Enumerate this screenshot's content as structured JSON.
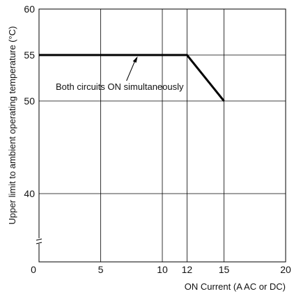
{
  "chart_data": {
    "type": "line",
    "xlabel": "ON Current (A AC or DC)",
    "ylabel": "Upper limit to ambient operating temperature (°C)",
    "xlim": [
      0,
      20
    ],
    "xticks": [
      0,
      5,
      10,
      12,
      15,
      20
    ],
    "x_tick_labels": [
      "0",
      "5",
      "10",
      "12",
      "15",
      "20"
    ],
    "yticks": [
      40,
      50,
      55,
      60
    ],
    "y_tick_labels": [
      "40",
      "50",
      "55",
      "60"
    ],
    "y_axis_break": true,
    "grid": true,
    "series": [
      {
        "x": [
          0,
          12,
          15
        ],
        "y": [
          55,
          55,
          50
        ]
      }
    ],
    "annotations": [
      {
        "text": "Both circuits ON simultaneously",
        "points_to": {
          "x": 8,
          "y": 55
        }
      }
    ]
  }
}
